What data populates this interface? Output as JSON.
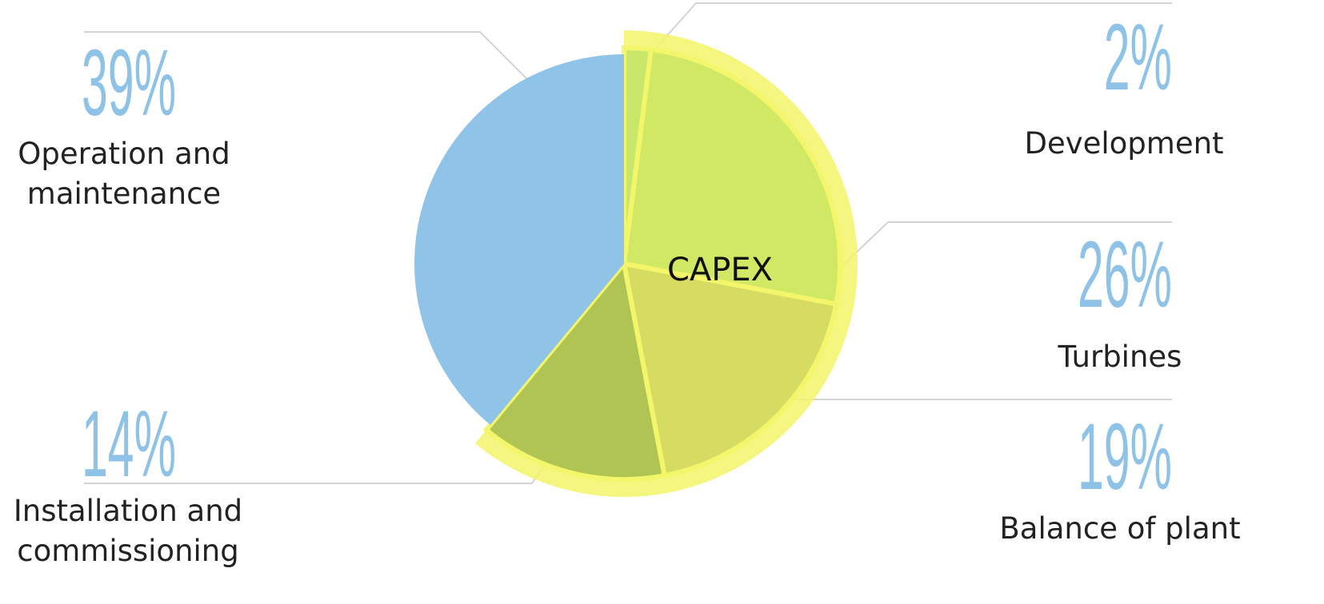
{
  "chart_data": {
    "type": "pie",
    "categories": [
      "Development",
      "Turbines",
      "Balance of plant",
      "Installation and commissioning",
      "Operation and maintenance"
    ],
    "values": [
      2,
      26,
      19,
      14,
      39
    ],
    "value_labels": [
      "2%",
      "26%",
      "19%",
      "14%",
      "39%"
    ],
    "colors": [
      "#c9e76a",
      "#d0e864",
      "#d6dc62",
      "#b0c454",
      "#90c3e8"
    ],
    "annotation": "CAPEX"
  }
}
